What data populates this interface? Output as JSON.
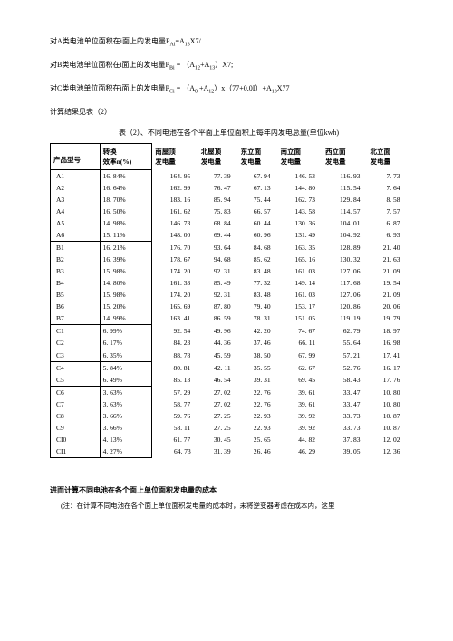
{
  "formulas": {
    "line1": "对A类电池单位面积在i面上的发电量P",
    "line1_sub1": "Ai",
    "line1_mid": "=A",
    "line1_sub2": "13",
    "line1_end": "X7/",
    "line2": "对B类电池单位面积在i面上的发电量P",
    "line2_sub1": "Bi",
    "line2_mid": " = （A",
    "line2_sub2": "12",
    "line2_mid2": "+A",
    "line2_sub3": "13",
    "line2_end": "）X7;",
    "line3": "对C类电池单位面积在i面上的发电量P",
    "line3_sub1": "Ci",
    "line3_mid": " = （A",
    "line3_sub2": "0",
    "line3_mid2": " +A",
    "line3_sub3": "12",
    "line3_mid3": "）x（77+0.0I）+A",
    "line3_sub4": "13",
    "line3_end": "X77",
    "line4": "计算结果见表（2）"
  },
  "table_title": "表（2）、不同电池在各个平面上单位面积上每年内发电总量(单位kwh)",
  "headers": {
    "product": "产品型号",
    "efficiency": "转换\n效率n(%)",
    "south_roof": "南屋顶\n发电量",
    "north_roof": "北屋顶\n发电量",
    "east": "东立面\n发电量",
    "south": "南立面\n发电量",
    "west": "西立面\n发电量",
    "north": "北立面\n发电量"
  },
  "rows": [
    {
      "id": "A1",
      "eff": "16. 84%",
      "c1": "164. 95",
      "c2": "77. 39",
      "c3": "67. 94",
      "c4": "146. 53",
      "c5": "116. 93",
      "c6": "7. 73",
      "group_end": false
    },
    {
      "id": "A2",
      "eff": "16. 64%",
      "c1": "162. 99",
      "c2": "76. 47",
      "c3": "67. 13",
      "c4": "144. 80",
      "c5": "115. 54",
      "c6": "7. 64",
      "group_end": false
    },
    {
      "id": "A3",
      "eff": "18. 70%",
      "c1": "183. 16",
      "c2": "85. 94",
      "c3": "75. 44",
      "c4": "162. 73",
      "c5": "129. 84",
      "c6": "8. 58",
      "group_end": false
    },
    {
      "id": "A4",
      "eff": "16. 50%",
      "c1": "161. 62",
      "c2": "75. 83",
      "c3": "66. 57",
      "c4": "143. 58",
      "c5": "114. 57",
      "c6": "7. 57",
      "group_end": false
    },
    {
      "id": "A5",
      "eff": "14. 98%",
      "c1": "146. 73",
      "c2": "68. 84",
      "c3": "60. 44",
      "c4": "130. 36",
      "c5": "104. 01",
      "c6": "6. 87",
      "group_end": false
    },
    {
      "id": "A6",
      "eff": "15. 11%",
      "c1": "148. 00",
      "c2": "69. 44",
      "c3": "60. 96",
      "c4": "131. 49",
      "c5": "104. 92",
      "c6": "6. 93",
      "group_end": true
    },
    {
      "id": "B1",
      "eff": "16. 21%",
      "c1": "176. 70",
      "c2": "93. 64",
      "c3": "84. 68",
      "c4": "163. 35",
      "c5": "128. 89",
      "c6": "21. 40",
      "group_end": false
    },
    {
      "id": "B2",
      "eff": "16. 39%",
      "c1": "178. 67",
      "c2": "94. 68",
      "c3": "85. 62",
      "c4": "165. 16",
      "c5": "130. 32",
      "c6": "21. 63",
      "group_end": false
    },
    {
      "id": "B3",
      "eff": "15. 98%",
      "c1": "174. 20",
      "c2": "92. 31",
      "c3": "83. 48",
      "c4": "161. 03",
      "c5": "127. 06",
      "c6": "21. 09",
      "group_end": false
    },
    {
      "id": "B4",
      "eff": "14. 80%",
      "c1": "161. 33",
      "c2": "85. 49",
      "c3": "77. 32",
      "c4": "149. 14",
      "c5": "117. 68",
      "c6": "19. 54",
      "group_end": false
    },
    {
      "id": "B5",
      "eff": "15. 98%",
      "c1": "174. 20",
      "c2": "92. 31",
      "c3": "83. 48",
      "c4": "161. 03",
      "c5": "127. 06",
      "c6": "21. 09",
      "group_end": false
    },
    {
      "id": "B6",
      "eff": "15. 20%",
      "c1": "165. 69",
      "c2": "87. 80",
      "c3": "79. 40",
      "c4": "153. 17",
      "c5": "120. 86",
      "c6": "20. 06",
      "group_end": false
    },
    {
      "id": "B7",
      "eff": "14. 99%",
      "c1": "163. 41",
      "c2": "86. 59",
      "c3": "78. 31",
      "c4": "151. 05",
      "c5": "119. 19",
      "c6": "19. 79",
      "group_end": true
    },
    {
      "id": "C1",
      "eff": "6. 99%",
      "c1": "92. 54",
      "c2": "49. 96",
      "c3": "42. 20",
      "c4": "74. 67",
      "c5": "62. 79",
      "c6": "18. 97",
      "group_end": false
    },
    {
      "id": "C2",
      "eff": "6. 17%",
      "c1": "84. 23",
      "c2": "44. 36",
      "c3": "37. 46",
      "c4": "66. 11",
      "c5": "55. 64",
      "c6": "16. 98",
      "group_end": true
    },
    {
      "id": "C3",
      "eff": "6. 35%",
      "c1": "88. 78",
      "c2": "45. 59",
      "c3": "38. 50",
      "c4": "67. 99",
      "c5": "57. 21",
      "c6": "17. 41",
      "group_end": true
    },
    {
      "id": "C4",
      "eff": "5. 84%",
      "c1": "80. 81",
      "c2": "42. 11",
      "c3": "35. 55",
      "c4": "62. 67",
      "c5": "52. 76",
      "c6": "16. 17",
      "group_end": false
    },
    {
      "id": "C5",
      "eff": "6. 49%",
      "c1": "85. 13",
      "c2": "46. 54",
      "c3": "39. 31",
      "c4": "69. 45",
      "c5": "58. 43",
      "c6": "17. 76",
      "group_end": true
    },
    {
      "id": "C6",
      "eff": "3. 63%",
      "c1": "57. 29",
      "c2": "27. 02",
      "c3": "22. 76",
      "c4": "39. 61",
      "c5": "33. 47",
      "c6": "10. 80",
      "group_end": false
    },
    {
      "id": "C7",
      "eff": "3. 63%",
      "c1": "58. 77",
      "c2": "27. 02",
      "c3": "22. 76",
      "c4": "39. 61",
      "c5": "33. 47",
      "c6": "10. 80",
      "group_end": false
    },
    {
      "id": "C8",
      "eff": "3. 66%",
      "c1": "59. 76",
      "c2": "27. 25",
      "c3": "22. 93",
      "c4": "39. 92",
      "c5": "33. 73",
      "c6": "10. 87",
      "group_end": false
    },
    {
      "id": "C9",
      "eff": "3. 66%",
      "c1": "58. 11",
      "c2": "27. 25",
      "c3": "22. 93",
      "c4": "39. 92",
      "c5": "33. 73",
      "c6": "10. 87",
      "group_end": false
    },
    {
      "id": "CI0",
      "eff": "4. 13%",
      "c1": "61. 77",
      "c2": "30. 45",
      "c3": "25. 65",
      "c4": "44. 82",
      "c5": "37. 83",
      "c6": "12. 02",
      "group_end": false
    },
    {
      "id": "CI1",
      "eff": "4. 27%",
      "c1": "64. 73",
      "c2": "31. 39",
      "c3": "26. 46",
      "c4": "46. 29",
      "c5": "39. 05",
      "c6": "12. 36",
      "group_end": false
    }
  ],
  "bottom": {
    "heading": "进而计算不同电池在各个面上单位面积发电量的成本",
    "note": "(注：在计算不同电池在各个面上单位面积发电量的成本时，未将逆变器考虑在成本内，这里"
  }
}
